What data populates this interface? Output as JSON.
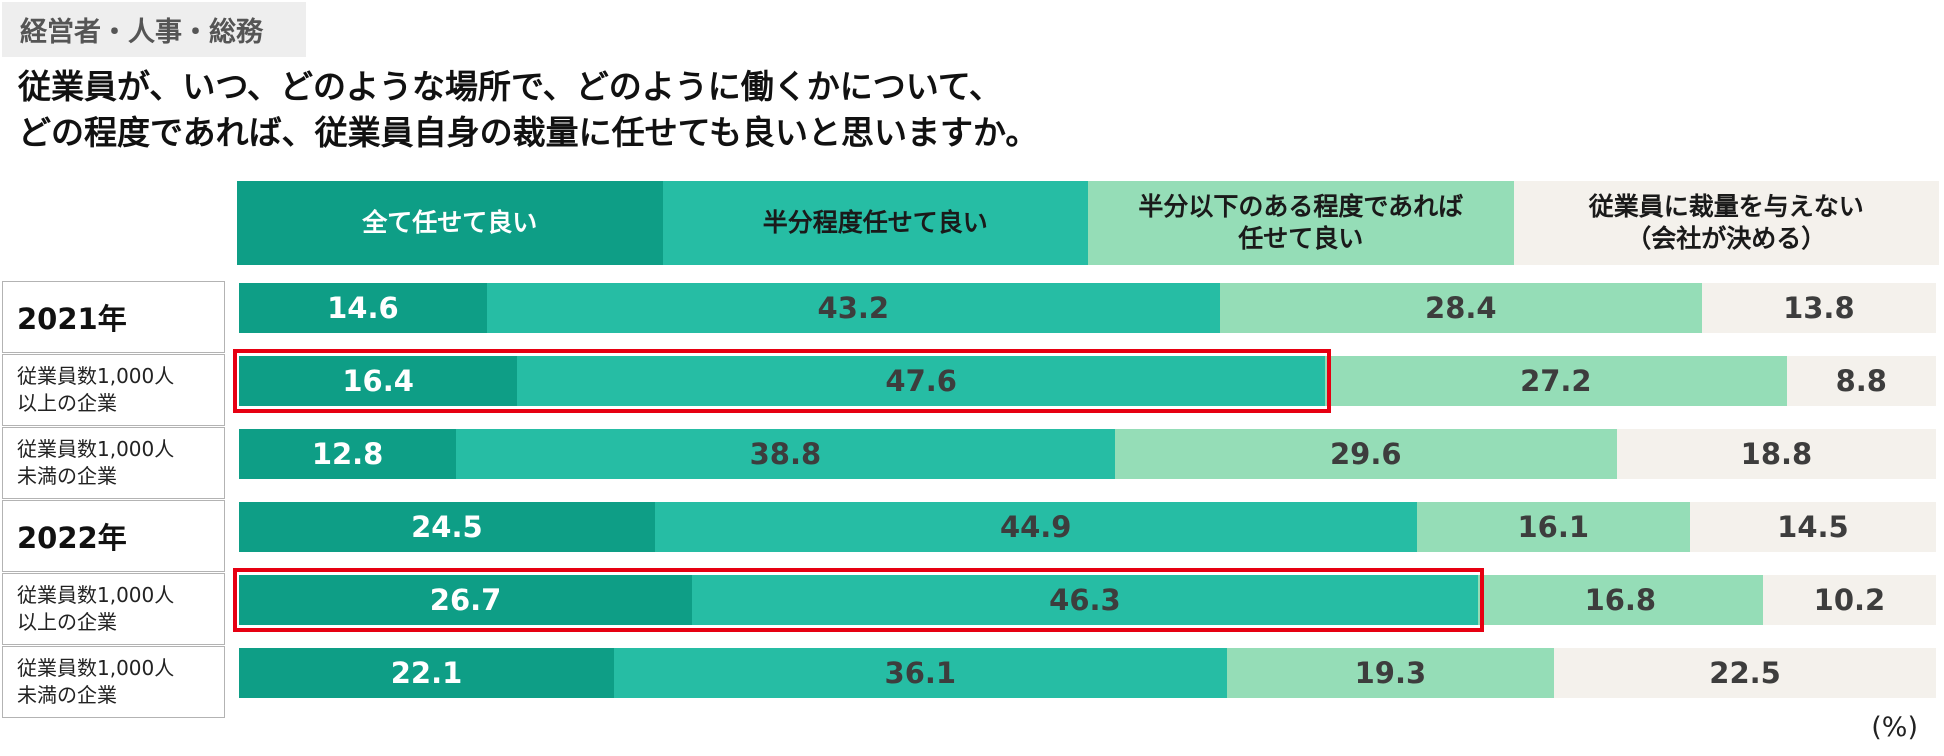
{
  "category_tag": "経営者・人事・総務",
  "question_lines": [
    "従業員が、いつ、どのような場所で、どのように働くかについて、",
    "どの程度であれば、従業員自身の裁量に任せても良いと思いますか。"
  ],
  "unit_label": "(%)",
  "colors": {
    "all": "#0e9e86",
    "half": "#26bda4",
    "partial": "#95ddb7",
    "none": "#f4f1ec",
    "highlight": "#e60012"
  },
  "chart_data": {
    "type": "bar",
    "stacked": true,
    "orientation": "horizontal",
    "normalized": true,
    "unit": "%",
    "categories": [
      "2021年",
      "従業員数1,000人以上の企業",
      "従業員数1,000人未満の企業",
      "2022年",
      "従業員数1,000人以上の企業",
      "従業員数1,000人未満の企業"
    ],
    "series": [
      {
        "name": "全て任せて良い",
        "values": [
          14.6,
          16.4,
          12.8,
          24.5,
          26.7,
          22.1
        ]
      },
      {
        "name": "半分程度任せて良い",
        "values": [
          43.2,
          47.6,
          38.8,
          44.9,
          46.3,
          36.1
        ]
      },
      {
        "name": "半分以下のある程度であれば任せて良い",
        "values": [
          28.4,
          27.2,
          29.6,
          16.1,
          16.8,
          19.3
        ]
      },
      {
        "name": "従業員に裁量を与えない（会社が決める）",
        "values": [
          13.8,
          8.8,
          18.8,
          14.5,
          10.2,
          22.5
        ]
      }
    ],
    "legend_position": "top",
    "highlighted": [
      {
        "category_index": 1,
        "series": [
          "全て任せて良い",
          "半分程度任せて良い"
        ]
      },
      {
        "category_index": 4,
        "series": [
          "全て任せて良い",
          "半分程度任せて良い"
        ]
      }
    ]
  },
  "row_labels": [
    {
      "text": "2021年",
      "kind": "year"
    },
    {
      "text": "従業員数1,000人\n以上の企業",
      "kind": "sub"
    },
    {
      "text": "従業員数1,000人\n未満の企業",
      "kind": "sub"
    },
    {
      "text": "2022年",
      "kind": "year"
    },
    {
      "text": "従業員数1,000人\n以上の企業",
      "kind": "sub"
    },
    {
      "text": "従業員数1,000人\n未満の企業",
      "kind": "sub"
    }
  ],
  "legend_labels": [
    "全て任せて良い",
    "半分程度任せて良い",
    "半分以下のある程度であれば\n任せて良い",
    "従業員に裁量を与えない\n（会社が決める）"
  ]
}
